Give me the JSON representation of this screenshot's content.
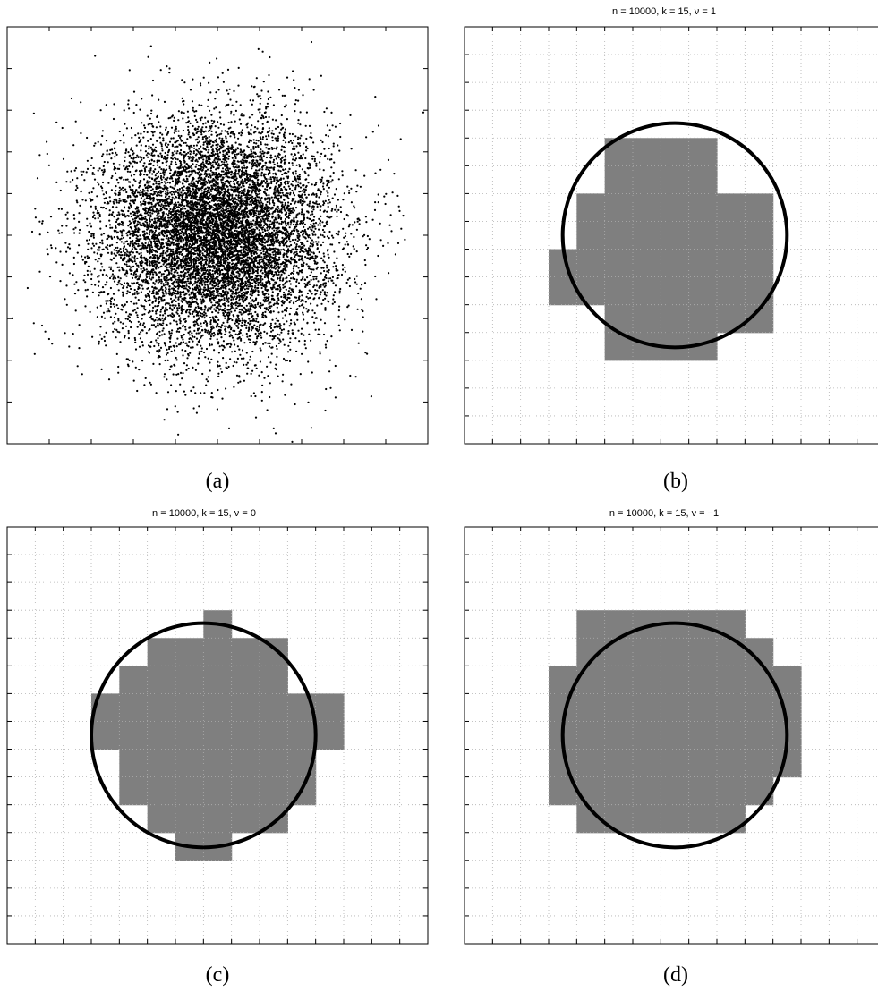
{
  "figure": {
    "panels": [
      {
        "id": "a",
        "caption": "(a)",
        "title": ""
      },
      {
        "id": "b",
        "caption": "(b)",
        "title": "n = 10000, k = 15, ν = 1"
      },
      {
        "id": "c",
        "caption": "(c)",
        "title": "n = 10000, k = 15, ν = 0"
      },
      {
        "id": "d",
        "caption": "(d)",
        "title": "n = 10000, k = 15, ν = −1"
      }
    ]
  },
  "chart_data": [
    {
      "type": "scatter",
      "panel": "a",
      "title": "",
      "n_points": 10000,
      "distribution": "2D standard normal, centered",
      "xlim": [
        -3.7,
        3.7
      ],
      "ylim": [
        -3.7,
        3.7
      ],
      "grid": false,
      "colors": {
        "points": "#000000"
      }
    },
    {
      "type": "heatmap",
      "panel": "b",
      "title": "n = 10000, k = 15, ν = 1",
      "grid_size": 15,
      "grid": true,
      "colors": {
        "cell": "#7f7f7f",
        "circle": "#000000"
      },
      "circle": {
        "cx": 7.5,
        "cy": 7.5,
        "r": 4.0
      },
      "filled_rows": [
        [
          5,
          8
        ],
        [
          5,
          8
        ],
        [
          4,
          10
        ],
        [
          4,
          10
        ],
        [
          3,
          10
        ],
        [
          3,
          10
        ],
        [
          5,
          10
        ],
        [
          5,
          8
        ]
      ],
      "first_filled_row": 4
    },
    {
      "type": "heatmap",
      "panel": "c",
      "title": "n = 10000, k = 15, ν = 0",
      "grid_size": 15,
      "grid": true,
      "colors": {
        "cell": "#7f7f7f",
        "circle": "#000000"
      },
      "circle": {
        "cx": 7.0,
        "cy": 7.5,
        "r": 4.0
      },
      "filled_rows": [
        [
          7,
          7
        ],
        [
          5,
          9
        ],
        [
          4,
          9
        ],
        [
          3,
          11
        ],
        [
          3,
          11
        ],
        [
          4,
          10
        ],
        [
          4,
          10
        ],
        [
          5,
          9
        ],
        [
          6,
          7
        ]
      ],
      "first_filled_row": 3
    },
    {
      "type": "heatmap",
      "panel": "d",
      "title": "n = 10000, k = 15, ν = −1",
      "grid_size": 15,
      "grid": true,
      "colors": {
        "cell": "#7f7f7f",
        "circle": "#000000"
      },
      "circle": {
        "cx": 7.5,
        "cy": 7.5,
        "r": 4.0
      },
      "filled_rows": [
        [
          4,
          9
        ],
        [
          4,
          10
        ],
        [
          3,
          11
        ],
        [
          3,
          11
        ],
        [
          3,
          11
        ],
        [
          3,
          11
        ],
        [
          3,
          10
        ],
        [
          4,
          9
        ]
      ],
      "first_filled_row": 3
    }
  ]
}
